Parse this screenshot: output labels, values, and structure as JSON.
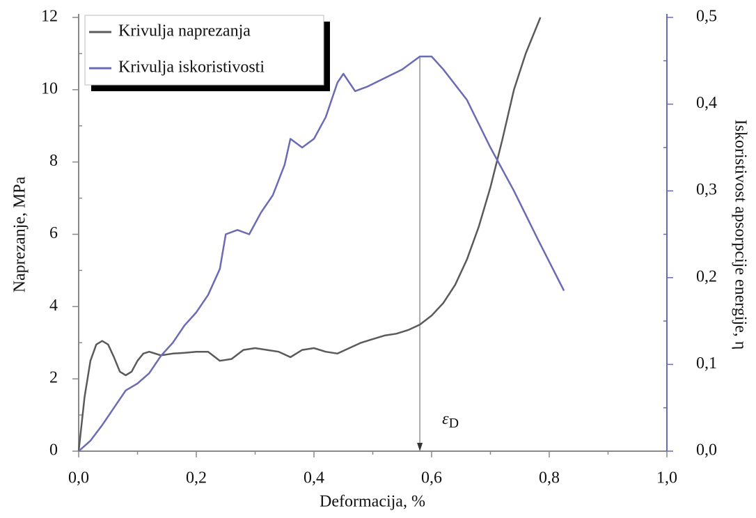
{
  "chart_data": {
    "type": "line",
    "x_label": "Deformacija, %",
    "y_label": "Naprezanje, MPa",
    "y2_label": "Iskoristivost apsorpcije energije, η",
    "xlim": [
      0,
      1
    ],
    "xticks": [
      {
        "value": 0,
        "label": "0,0"
      },
      {
        "value": 0.2,
        "label": "0,2"
      },
      {
        "value": 0.4,
        "label": "0,4"
      },
      {
        "value": 0.6,
        "label": "0,6"
      },
      {
        "value": 0.8,
        "label": "0,8"
      },
      {
        "value": 1,
        "label": "1,0"
      }
    ],
    "ylim": [
      0,
      12
    ],
    "yticks": [
      0,
      2,
      4,
      6,
      8,
      10,
      12
    ],
    "y2lim": [
      0,
      0.5
    ],
    "y2ticks": [
      {
        "value": 0,
        "label": "0,0"
      },
      {
        "value": 0.1,
        "label": "0,1"
      },
      {
        "value": 0.2,
        "label": "0,2"
      },
      {
        "value": 0.3,
        "label": "0,3"
      },
      {
        "value": 0.4,
        "label": "0,4"
      },
      {
        "value": 0.5,
        "label": "0,5"
      }
    ],
    "legend": "upper left",
    "series": [
      {
        "name": "Krivulja naprezanja",
        "color": "#5a5a5a",
        "axis": "y",
        "x": [
          0,
          0.01,
          0.02,
          0.03,
          0.04,
          0.05,
          0.06,
          0.07,
          0.08,
          0.09,
          0.1,
          0.11,
          0.12,
          0.14,
          0.16,
          0.18,
          0.2,
          0.22,
          0.24,
          0.26,
          0.28,
          0.3,
          0.32,
          0.34,
          0.36,
          0.38,
          0.4,
          0.42,
          0.44,
          0.46,
          0.48,
          0.5,
          0.52,
          0.54,
          0.56,
          0.58,
          0.6,
          0.62,
          0.64,
          0.66,
          0.68,
          0.7,
          0.72,
          0.74,
          0.76,
          0.785
        ],
        "values": [
          0,
          1.5,
          2.5,
          2.95,
          3.05,
          2.95,
          2.6,
          2.2,
          2.1,
          2.2,
          2.5,
          2.7,
          2.75,
          2.65,
          2.7,
          2.72,
          2.75,
          2.75,
          2.5,
          2.55,
          2.8,
          2.85,
          2.8,
          2.75,
          2.6,
          2.8,
          2.85,
          2.75,
          2.7,
          2.85,
          3.0,
          3.1,
          3.2,
          3.25,
          3.35,
          3.5,
          3.75,
          4.1,
          4.6,
          5.3,
          6.2,
          7.3,
          8.6,
          10.0,
          11.0,
          12
        ]
      },
      {
        "name": "Krivulja iskoristivosti",
        "color": "#6b6bb5",
        "axis": "y2",
        "x": [
          0,
          0.02,
          0.04,
          0.06,
          0.08,
          0.1,
          0.12,
          0.14,
          0.16,
          0.18,
          0.2,
          0.22,
          0.24,
          0.25,
          0.27,
          0.29,
          0.31,
          0.33,
          0.35,
          0.36,
          0.38,
          0.4,
          0.42,
          0.44,
          0.45,
          0.47,
          0.49,
          0.52,
          0.55,
          0.58,
          0.6,
          0.62,
          0.66,
          0.7,
          0.74,
          0.78,
          0.825
        ],
        "values": [
          0,
          0.012,
          0.03,
          0.05,
          0.07,
          0.078,
          0.09,
          0.11,
          0.125,
          0.145,
          0.16,
          0.18,
          0.21,
          0.25,
          0.255,
          0.25,
          0.275,
          0.295,
          0.33,
          0.36,
          0.35,
          0.36,
          0.385,
          0.425,
          0.435,
          0.415,
          0.42,
          0.43,
          0.44,
          0.455,
          0.455,
          0.44,
          0.405,
          0.35,
          0.3,
          0.245,
          0.185
        ]
      }
    ],
    "annotation": {
      "text": "ε",
      "subscript": "D",
      "x": 0.58
    }
  }
}
